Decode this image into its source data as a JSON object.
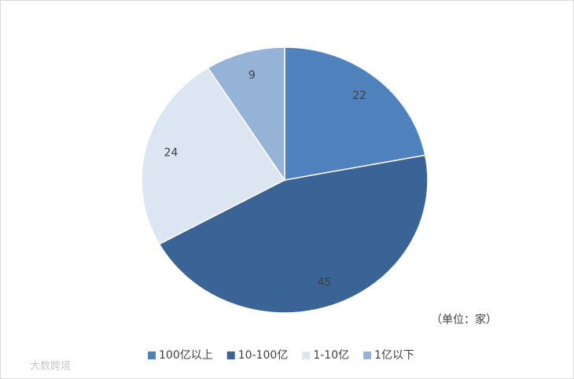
{
  "chart_data": {
    "type": "pie",
    "categories": [
      "100亿以上",
      "10-100亿",
      "1-10亿",
      "1亿以下"
    ],
    "values": [
      22,
      45,
      24,
      9
    ],
    "colors": [
      "#4f81bd",
      "#3a6496",
      "#dce6f2",
      "#95b3d7"
    ],
    "annotation": "（单位：家）",
    "watermark": "大数跨境",
    "legend": "bottom"
  }
}
